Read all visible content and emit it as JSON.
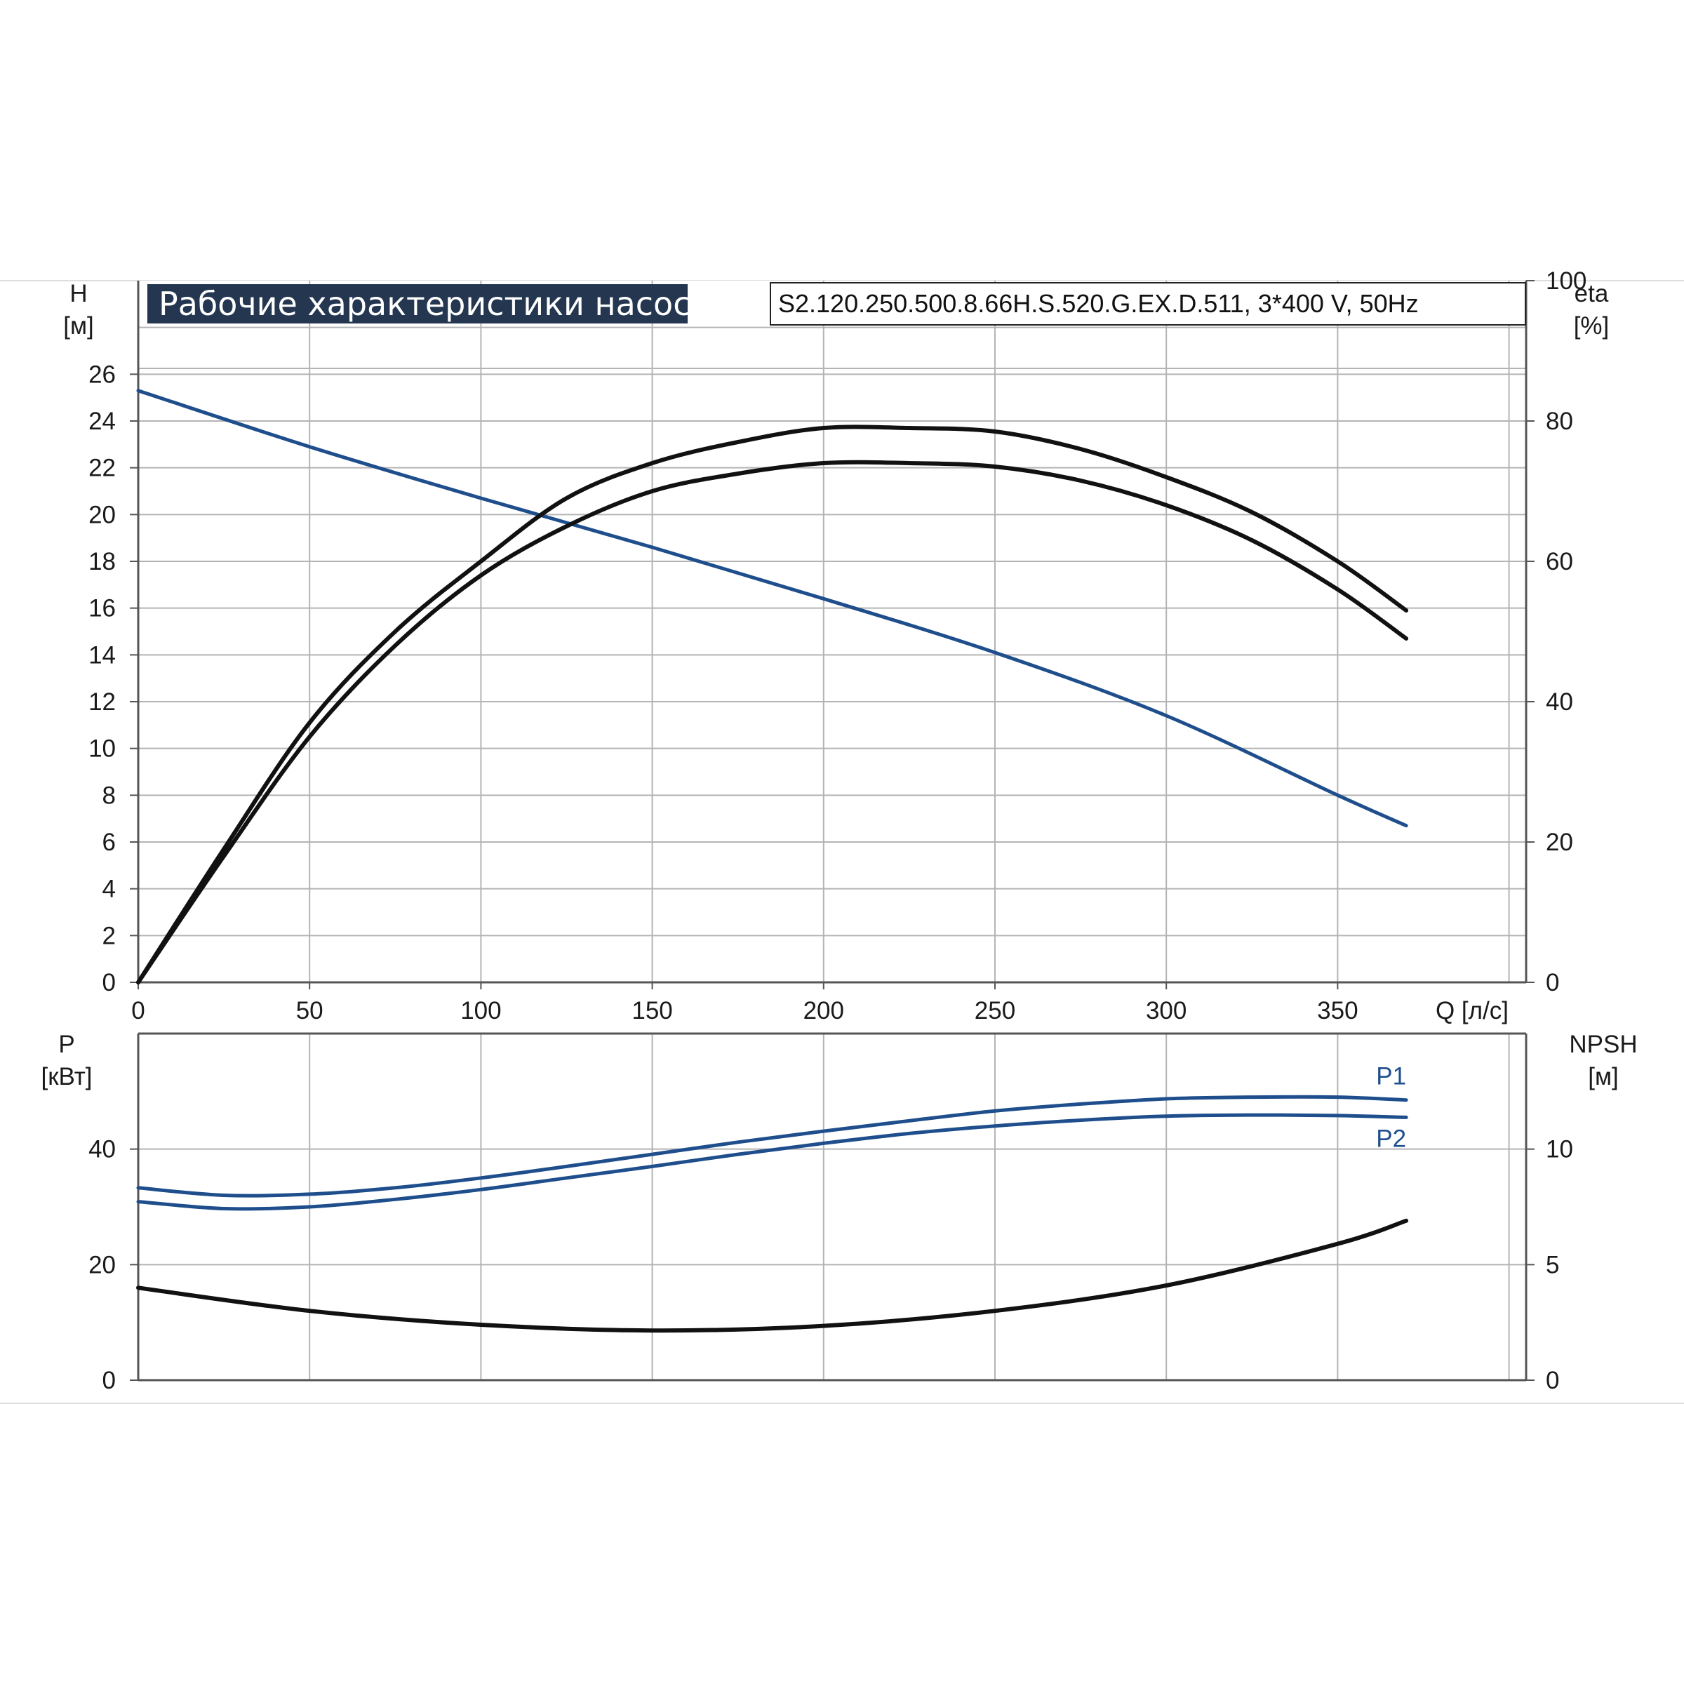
{
  "header": {
    "title": "Рабочие характеристики насоса",
    "model": "S2.120.250.500.8.66H.S.520.G.EX.D.511, 3*400 V, 50Hz"
  },
  "chart_data": [
    {
      "type": "line",
      "title": "Рабочие характеристики насоса",
      "xlabel": "Q [л/с]",
      "ylabel": "H [м]",
      "y2label": "eta [%]",
      "xlim": [
        0,
        405
      ],
      "ylim": [
        0,
        30
      ],
      "y2lim": [
        0,
        100
      ],
      "x_ticks": [
        0,
        50,
        100,
        150,
        200,
        250,
        300,
        350
      ],
      "y_ticks": [
        0,
        2,
        4,
        6,
        8,
        10,
        12,
        14,
        16,
        18,
        20,
        22,
        24,
        26
      ],
      "y2_ticks": [
        0,
        20,
        40,
        60,
        80,
        100
      ],
      "grid": true,
      "series": [
        {
          "axis": "left",
          "color": "#1f4e8c",
          "x": [
            0,
            50,
            100,
            150,
            200,
            250,
            300,
            350,
            370
          ],
          "values": [
            25.3,
            22.9,
            20.7,
            18.6,
            16.4,
            14.1,
            11.4,
            8.0,
            6.7
          ]
        },
        {
          "axis": "right",
          "color": "#111111",
          "x": [
            0,
            25,
            50,
            75,
            100,
            125,
            150,
            175,
            200,
            225,
            250,
            275,
            300,
            325,
            350,
            370
          ],
          "values": [
            0,
            19,
            37,
            50,
            60,
            69,
            74,
            77,
            79,
            79,
            78.5,
            76,
            72,
            67,
            60,
            53
          ]
        },
        {
          "axis": "right",
          "color": "#111111",
          "x": [
            0,
            25,
            50,
            75,
            100,
            125,
            150,
            175,
            200,
            225,
            250,
            275,
            300,
            325,
            350,
            370
          ],
          "values": [
            0,
            18,
            35,
            48,
            58,
            65,
            70,
            72.5,
            74,
            74,
            73.5,
            71.5,
            68,
            63,
            56,
            49
          ]
        }
      ]
    },
    {
      "type": "line",
      "xlabel": "",
      "ylabel": "P [кВт]",
      "y2label": "NPSH [м]",
      "xlim": [
        0,
        405
      ],
      "ylim": [
        0,
        60
      ],
      "y2lim": [
        0,
        15
      ],
      "y_ticks": [
        0,
        20,
        40
      ],
      "y2_ticks": [
        0,
        5,
        10
      ],
      "grid": true,
      "series": [
        {
          "name": "P1",
          "axis": "left",
          "color": "#1f4e8c",
          "x": [
            0,
            25,
            50,
            75,
            100,
            125,
            150,
            175,
            200,
            225,
            250,
            275,
            300,
            325,
            350,
            370
          ],
          "values": [
            33.3,
            32.0,
            32.2,
            33.3,
            35.0,
            37.0,
            39.1,
            41.2,
            43.1,
            44.9,
            46.6,
            47.8,
            48.7,
            49.0,
            49.0,
            48.5
          ]
        },
        {
          "name": "P2",
          "axis": "left",
          "color": "#1f4e8c",
          "x": [
            0,
            25,
            50,
            75,
            100,
            125,
            150,
            175,
            200,
            225,
            250,
            275,
            300,
            325,
            350,
            370
          ],
          "values": [
            30.9,
            29.7,
            30.0,
            31.3,
            33.0,
            35.0,
            37.0,
            39.1,
            41.0,
            42.7,
            44.0,
            45.0,
            45.7,
            45.9,
            45.8,
            45.5
          ]
        },
        {
          "axis": "right",
          "color": "#111111",
          "x": [
            0,
            50,
            100,
            150,
            200,
            250,
            300,
            350,
            370
          ],
          "values": [
            4.0,
            3.0,
            2.4,
            2.15,
            2.35,
            3.0,
            4.1,
            5.9,
            6.9
          ]
        }
      ]
    }
  ]
}
